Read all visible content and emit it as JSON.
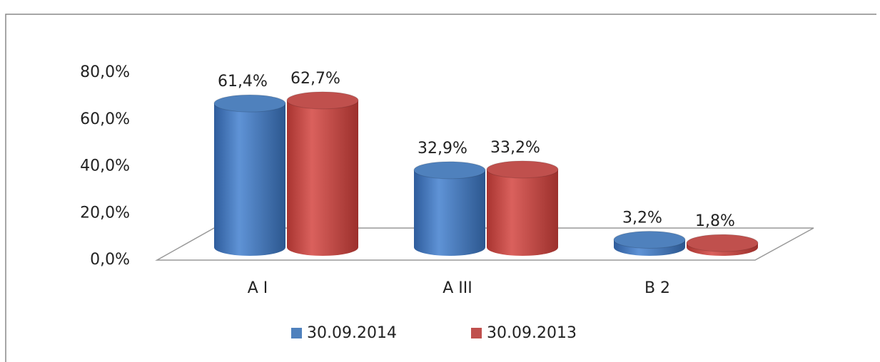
{
  "chart_data": {
    "type": "bar3d",
    "categories": [
      "A I",
      "A III",
      "B 2"
    ],
    "series": [
      {
        "name": "30.09.2014",
        "color": "#4f81bd",
        "values": [
          61.4,
          32.9,
          3.2
        ],
        "value_labels": [
          "61,4%",
          "32,9%",
          "3,2%"
        ]
      },
      {
        "name": "30.09.2013",
        "color": "#c0504d",
        "values": [
          62.7,
          33.2,
          1.8
        ],
        "value_labels": [
          "62,7%",
          "33,2%",
          "1,8%"
        ]
      }
    ],
    "ylim": [
      0,
      80
    ],
    "yticks": [
      {
        "value": 0,
        "label": "0,0%"
      },
      {
        "value": 20,
        "label": "20,0%"
      },
      {
        "value": 40,
        "label": "40,0%"
      },
      {
        "value": 60,
        "label": "60,0%"
      },
      {
        "value": 80,
        "label": "80,0%"
      }
    ],
    "legend": "bottom"
  }
}
